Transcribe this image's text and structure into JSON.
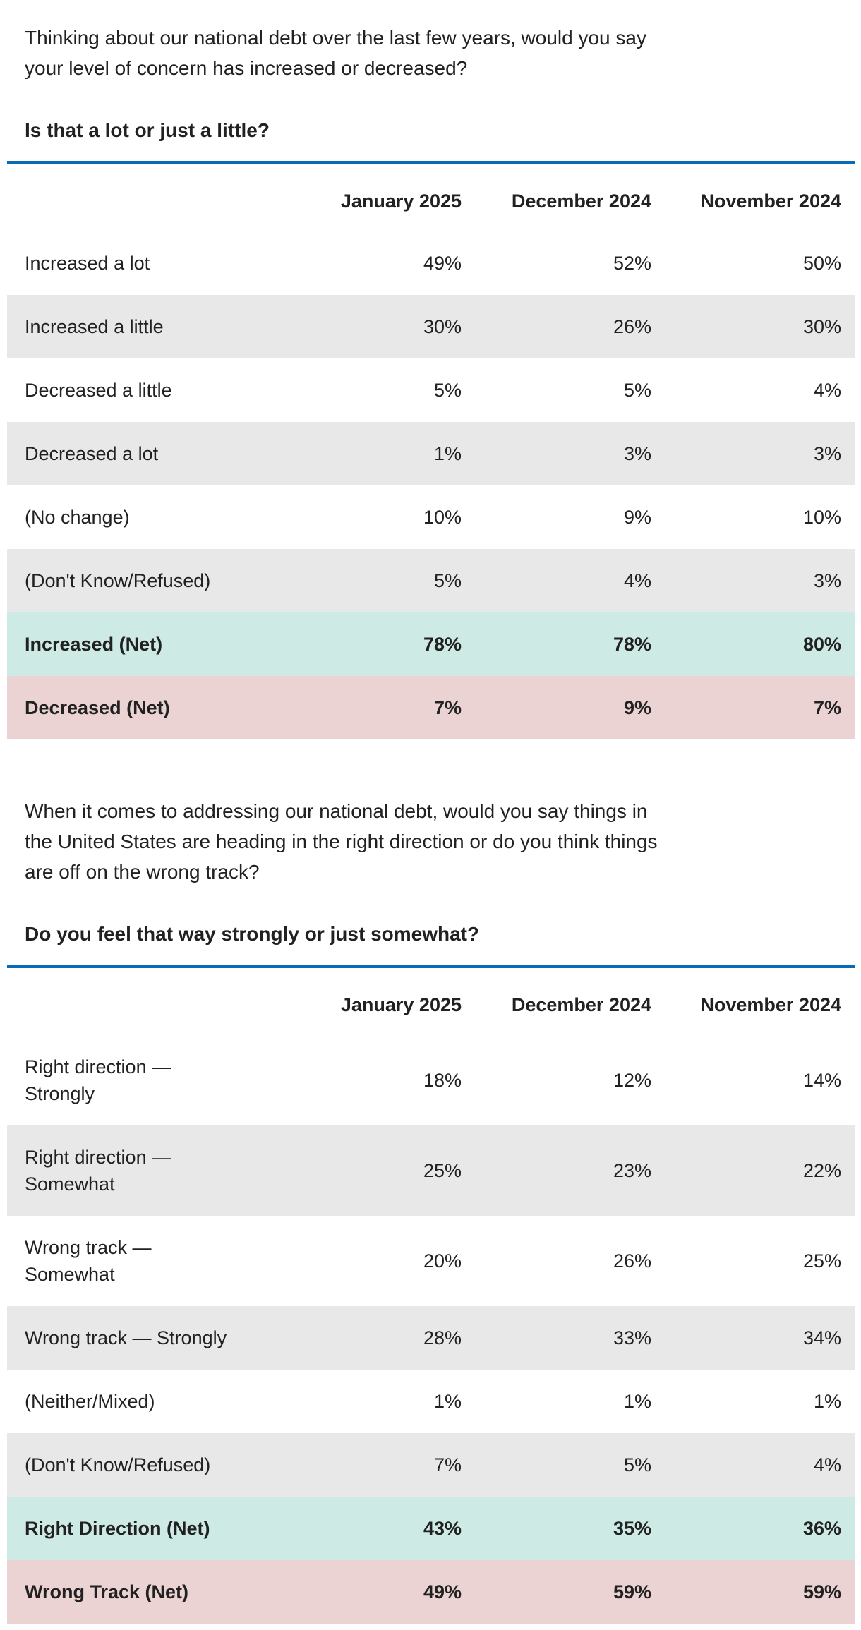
{
  "colors": {
    "accent_blue": "#0a6ab4",
    "text": "#212121",
    "row_alt_gray": "#e8e8e8",
    "net_positive_teal": "#cdeae4",
    "net_negative_pink": "#ecd3d3",
    "page_background": "#ffffff"
  },
  "chart_data": [
    {
      "type": "table",
      "question": "Thinking about our national debt over the last few years, would you say\nyour level of concern has increased or decreased?",
      "subquestion": "Is that a lot or just a little?",
      "columns": [
        "January 2025",
        "December 2024",
        "November 2024"
      ],
      "rows": [
        {
          "label": "Increased a lot",
          "values": [
            "49%",
            "52%",
            "50%"
          ],
          "shade": "white",
          "emphasis": false
        },
        {
          "label": "Increased a little",
          "values": [
            "30%",
            "26%",
            "30%"
          ],
          "shade": "gray",
          "emphasis": false
        },
        {
          "label": "Decreased a little",
          "values": [
            "5%",
            "5%",
            "4%"
          ],
          "shade": "white",
          "emphasis": false
        },
        {
          "label": "Decreased a lot",
          "values": [
            "1%",
            "3%",
            "3%"
          ],
          "shade": "gray",
          "emphasis": false
        },
        {
          "label": "(No change)",
          "values": [
            "10%",
            "9%",
            "10%"
          ],
          "shade": "white",
          "emphasis": false
        },
        {
          "label": "(Don't Know/Refused)",
          "values": [
            "5%",
            "4%",
            "3%"
          ],
          "shade": "gray",
          "emphasis": false
        },
        {
          "label": "Increased (Net)",
          "values": [
            "78%",
            "78%",
            "80%"
          ],
          "shade": "teal",
          "emphasis": true
        },
        {
          "label": "Decreased (Net)",
          "values": [
            "7%",
            "9%",
            "7%"
          ],
          "shade": "pink",
          "emphasis": true
        }
      ]
    },
    {
      "type": "table",
      "question": "When it comes to addressing our national debt, would you say things in\nthe United States are heading in the right direction or do you think things\nare off on the wrong track?",
      "subquestion": "Do you feel that way strongly or just somewhat?",
      "columns": [
        "January 2025",
        "December 2024",
        "November 2024"
      ],
      "rows": [
        {
          "label": "Right direction —\nStrongly",
          "values": [
            "18%",
            "12%",
            "14%"
          ],
          "shade": "white",
          "emphasis": false
        },
        {
          "label": "Right direction —\nSomewhat",
          "values": [
            "25%",
            "23%",
            "22%"
          ],
          "shade": "gray",
          "emphasis": false
        },
        {
          "label": "Wrong track —\nSomewhat",
          "values": [
            "20%",
            "26%",
            "25%"
          ],
          "shade": "white",
          "emphasis": false
        },
        {
          "label": "Wrong track — Strongly",
          "values": [
            "28%",
            "33%",
            "34%"
          ],
          "shade": "gray",
          "emphasis": false
        },
        {
          "label": "(Neither/Mixed)",
          "values": [
            "1%",
            "1%",
            "1%"
          ],
          "shade": "white",
          "emphasis": false
        },
        {
          "label": "(Don't Know/Refused)",
          "values": [
            "7%",
            "5%",
            "4%"
          ],
          "shade": "gray",
          "emphasis": false
        },
        {
          "label": "Right Direction (Net)",
          "values": [
            "43%",
            "35%",
            "36%"
          ],
          "shade": "teal",
          "emphasis": true
        },
        {
          "label": "Wrong Track (Net)",
          "values": [
            "49%",
            "59%",
            "59%"
          ],
          "shade": "pink",
          "emphasis": true
        }
      ]
    }
  ]
}
